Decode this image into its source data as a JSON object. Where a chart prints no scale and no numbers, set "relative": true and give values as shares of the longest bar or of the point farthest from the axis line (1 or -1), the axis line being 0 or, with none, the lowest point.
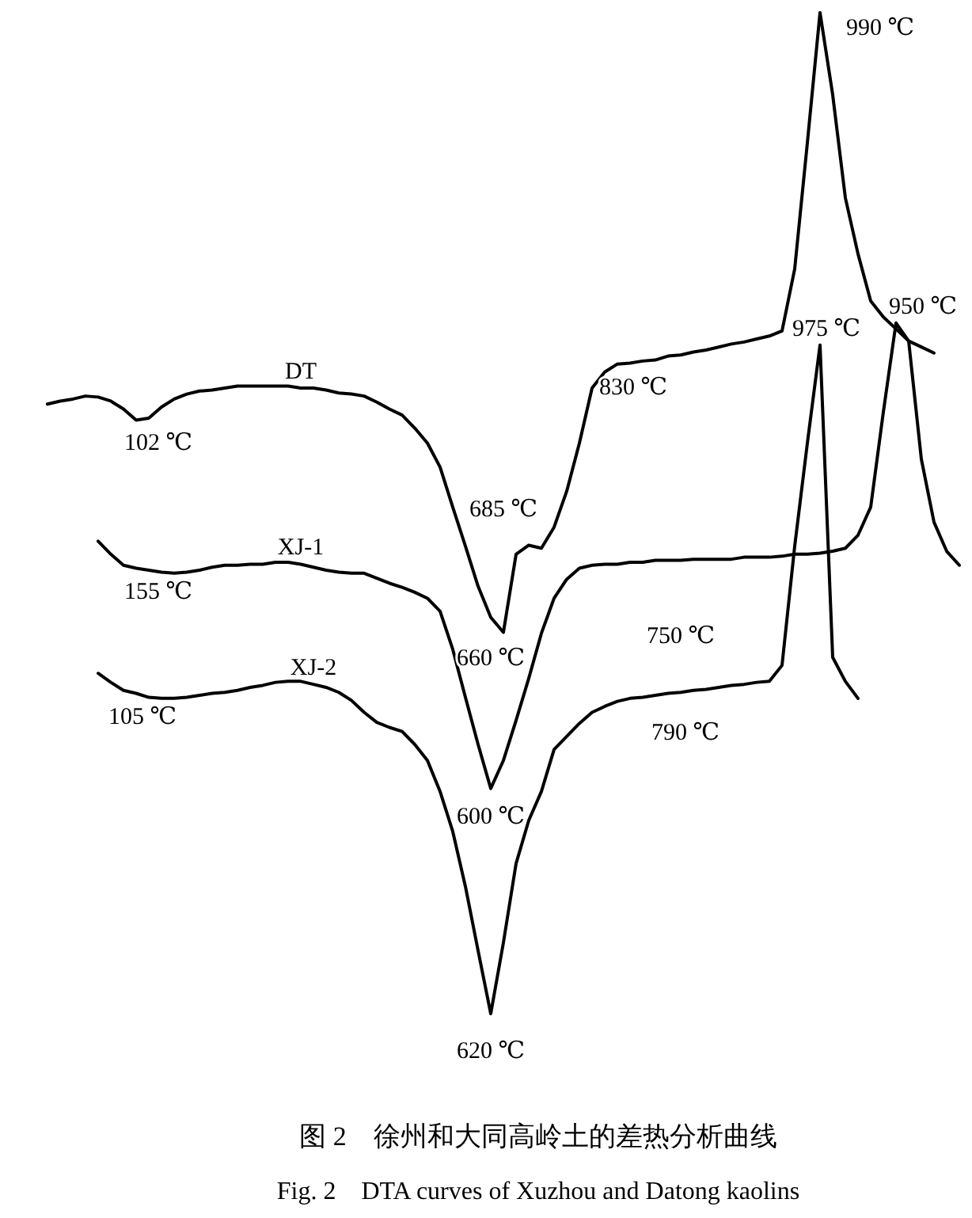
{
  "chart_data": {
    "type": "line",
    "relative": true,
    "marker": "none",
    "line_style": "solid",
    "title": "图 2　徐州和大同高岭土的差热分析曲线",
    "subtitle": "Fig. 2　DTA curves of Xuzhou and Datong kaolins",
    "categories": [
      null,
      null,
      null,
      null,
      null,
      null,
      null,
      null,
      null,
      null,
      null,
      null,
      null,
      null,
      null,
      null,
      null,
      null,
      null,
      null,
      null,
      null,
      null,
      null,
      null,
      null,
      null,
      null,
      null,
      null,
      null,
      null,
      null,
      null,
      null,
      null,
      null,
      null,
      null,
      null,
      null,
      null,
      null,
      null,
      null,
      null,
      null,
      null,
      null,
      null,
      null,
      null,
      null,
      null,
      null,
      null,
      null,
      null,
      null,
      null,
      null,
      null,
      null,
      null,
      null,
      null,
      null,
      null,
      null,
      null,
      null,
      null,
      null
    ],
    "series": [
      {
        "name": "DT",
        "color": "#000000",
        "values": [
          0.609,
          0.612,
          0.614,
          0.617,
          0.616,
          0.612,
          0.604,
          0.593,
          0.595,
          0.606,
          0.614,
          0.619,
          0.622,
          0.623,
          0.625,
          0.627,
          0.627,
          0.627,
          0.627,
          0.627,
          0.625,
          0.625,
          0.623,
          0.62,
          0.619,
          0.617,
          0.611,
          0.604,
          0.598,
          0.585,
          0.57,
          0.546,
          0.506,
          0.467,
          0.427,
          0.396,
          0.381,
          0.459,
          0.468,
          0.465,
          0.486,
          0.522,
          0.57,
          0.625,
          0.641,
          0.649,
          0.65,
          0.652,
          0.653,
          0.657,
          0.658,
          0.661,
          0.663,
          0.666,
          0.669,
          0.671,
          0.674,
          0.677,
          0.682,
          0.744,
          0.87,
          1,
          0.918,
          0.815,
          0.759,
          0.712,
          0.696,
          0.684,
          0.672,
          0.666,
          0.66,
          null,
          null
        ]
      },
      {
        "name": "XJ-1",
        "color": "#000000",
        "values": [
          null,
          null,
          null,
          null,
          0.472,
          0.459,
          0.448,
          0.445,
          0.443,
          0.441,
          0.44,
          0.441,
          0.443,
          0.446,
          0.448,
          0.448,
          0.449,
          0.449,
          0.451,
          0.451,
          0.449,
          0.446,
          0.443,
          0.441,
          0.44,
          0.44,
          0.435,
          0.43,
          0.426,
          0.421,
          0.415,
          0.402,
          0.364,
          0.316,
          0.269,
          0.225,
          0.253,
          0.293,
          0.335,
          0.38,
          0.415,
          0.434,
          0.445,
          0.448,
          0.449,
          0.449,
          0.451,
          0.451,
          0.453,
          0.453,
          0.453,
          0.454,
          0.454,
          0.454,
          0.454,
          0.456,
          0.456,
          0.456,
          0.457,
          0.459,
          0.459,
          0.46,
          0.462,
          0.465,
          0.478,
          0.506,
          0.601,
          0.69,
          0.672,
          0.554,
          0.491,
          0.462,
          0.448
        ]
      },
      {
        "name": "XJ-2",
        "color": "#000000",
        "values": [
          null,
          null,
          null,
          null,
          0.34,
          0.331,
          0.323,
          0.32,
          0.316,
          0.315,
          0.315,
          0.316,
          0.318,
          0.32,
          0.321,
          0.323,
          0.326,
          0.328,
          0.331,
          0.332,
          0.332,
          0.329,
          0.326,
          0.321,
          0.313,
          0.301,
          0.291,
          0.286,
          0.282,
          0.269,
          0.253,
          0.222,
          0.182,
          0.127,
          0.063,
          0,
          0.071,
          0.15,
          0.193,
          0.222,
          0.264,
          0.277,
          0.29,
          0.301,
          0.307,
          0.312,
          0.315,
          0.316,
          0.318,
          0.32,
          0.321,
          0.323,
          0.324,
          0.326,
          0.328,
          0.329,
          0.331,
          0.332,
          0.348,
          0.467,
          0.57,
          0.668,
          0.356,
          0.332,
          0.315,
          null,
          null,
          null,
          null,
          null,
          null,
          null,
          null
        ]
      }
    ],
    "annotations": [
      "102 ℃",
      "155 ℃",
      "105 ℃",
      "685 ℃",
      "660 ℃",
      "830 ℃",
      "990 ℃",
      "975 ℃",
      "950 ℃",
      "750 ℃",
      "600 ℃",
      "790 ℃",
      "620 ℃"
    ]
  }
}
